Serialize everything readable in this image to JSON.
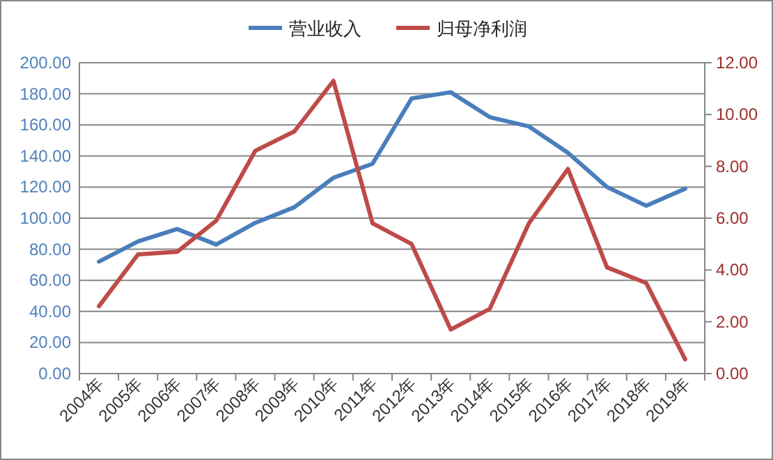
{
  "chart_data": {
    "type": "line",
    "categories": [
      "2004年",
      "2005年",
      "2006年",
      "2007年",
      "2008年",
      "2009年",
      "2010年",
      "2011年",
      "2012年",
      "2013年",
      "2014年",
      "2015年",
      "2016年",
      "2017年",
      "2018年",
      "2019年"
    ],
    "series": [
      {
        "name": "营业收入",
        "color": "#4a7ebb",
        "values": [
          72,
          85,
          93,
          83,
          97,
          107,
          126,
          135,
          177,
          181,
          165,
          159,
          142,
          120,
          108,
          119
        ]
      },
      {
        "name": "归母净利润",
        "color": "#be4b48",
        "axis": "y2",
        "values": [
          2.6,
          4.6,
          4.7,
          5.9,
          8.6,
          9.35,
          11.3,
          5.8,
          5.0,
          1.7,
          2.5,
          5.8,
          7.9,
          4.1,
          3.5,
          0.55
        ]
      }
    ],
    "ylim": [
      0,
      200
    ],
    "yticks": [
      {
        "value": 0,
        "label": "0.00"
      },
      {
        "value": 20,
        "label": "20.00"
      },
      {
        "value": 40,
        "label": "40.00"
      },
      {
        "value": 60,
        "label": "60.00"
      },
      {
        "value": 80,
        "label": "80.00"
      },
      {
        "value": 100,
        "label": "100.00"
      },
      {
        "value": 120,
        "label": "120.00"
      },
      {
        "value": 140,
        "label": "140.00"
      },
      {
        "value": 160,
        "label": "160.00"
      },
      {
        "value": 180,
        "label": "180.00"
      },
      {
        "value": 200,
        "label": "200.00"
      }
    ],
    "y2lim": [
      0,
      12
    ],
    "y2ticks": [
      {
        "value": 0,
        "label": "0.00"
      },
      {
        "value": 2,
        "label": "2.00"
      },
      {
        "value": 4,
        "label": "4.00"
      },
      {
        "value": 6,
        "label": "6.00"
      },
      {
        "value": 8,
        "label": "8.00"
      },
      {
        "value": 10,
        "label": "10.00"
      },
      {
        "value": 12,
        "label": "12.00"
      }
    ],
    "grid": "y",
    "legend": "top",
    "marker": "none",
    "line_style": "solid"
  }
}
